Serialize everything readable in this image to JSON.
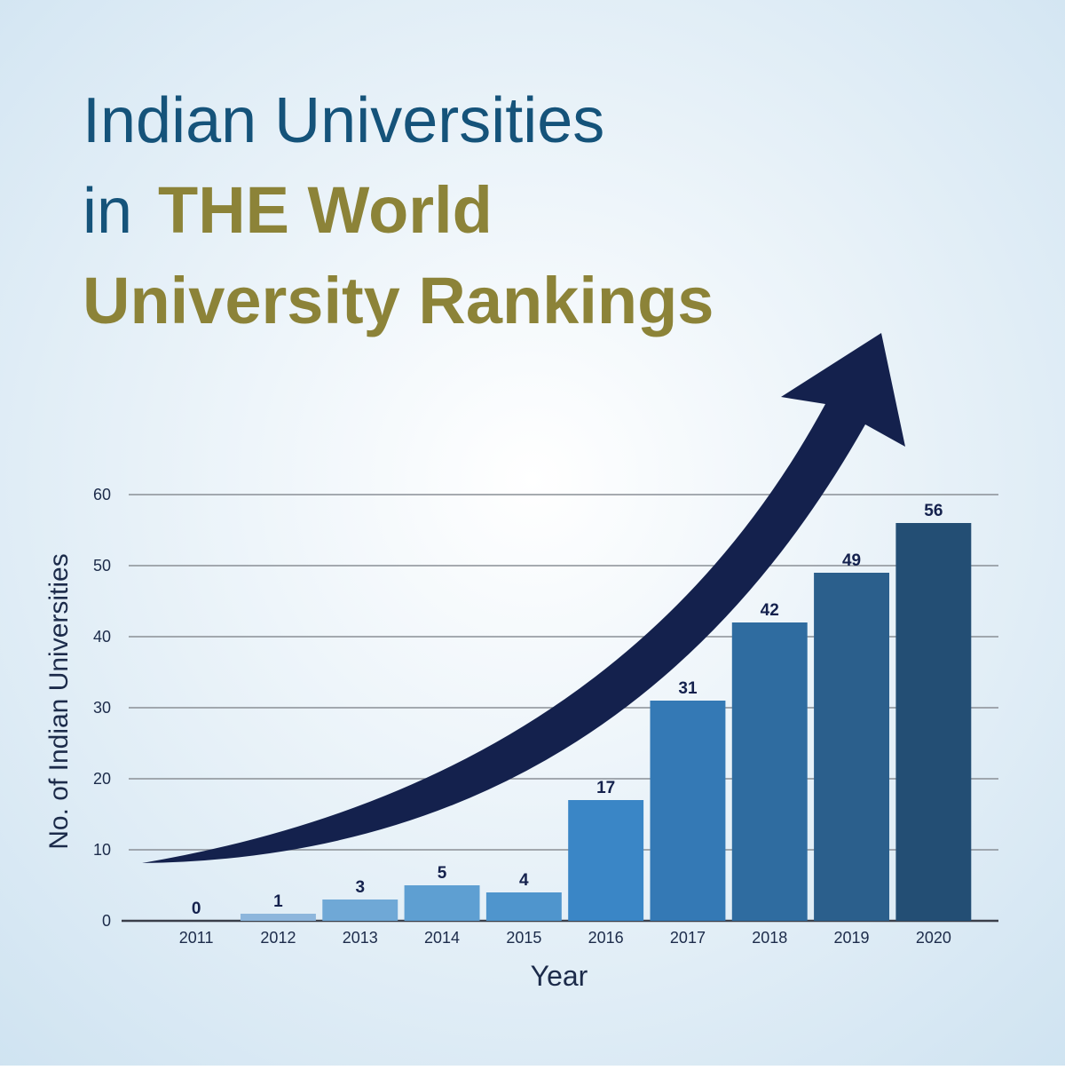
{
  "chart_data": {
    "type": "bar",
    "title": [
      "Indian Universities",
      "in",
      "THE World",
      "University Rankings"
    ],
    "x_label": "Year",
    "y_label": "No. of Indian Universities",
    "categories": [
      "2011",
      "2012",
      "2013",
      "2014",
      "2015",
      "2016",
      "2017",
      "2018",
      "2019",
      "2020"
    ],
    "values": [
      0,
      1,
      3,
      5,
      4,
      17,
      31,
      42,
      49,
      56
    ],
    "colors": [
      "#9cc3e4",
      "#8db6dc",
      "#6fa8d6",
      "#5e9fd2",
      "#4f95cd",
      "#3a86c6",
      "#3479b5",
      "#2f6ca0",
      "#2b5f8c",
      "#234e74"
    ],
    "ylim": [
      0,
      60
    ],
    "yticks": [
      0,
      10,
      20,
      30,
      40,
      50,
      60
    ],
    "grid": true
  }
}
